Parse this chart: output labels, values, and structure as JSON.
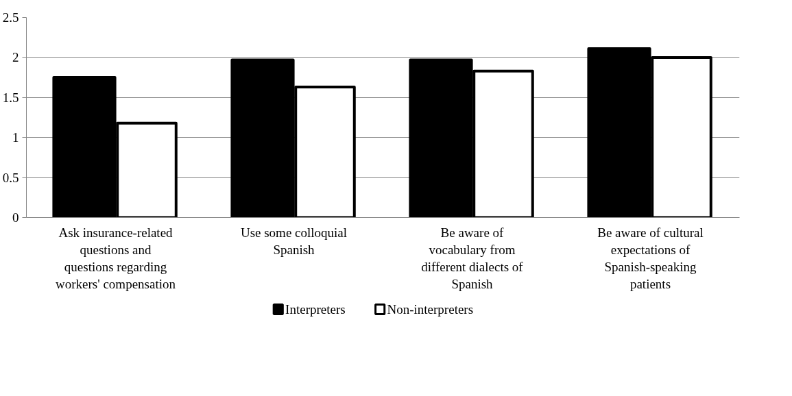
{
  "chart_data": {
    "type": "bar",
    "categories": [
      "Ask insurance-related questions and questions regarding workers' compensation",
      "Use some colloquial Spanish",
      "Be aware of vocabulary from different dialects of Spanish",
      "Be aware of cultural expectations of Spanish-speaking patients"
    ],
    "series": [
      {
        "name": "Interpreters",
        "color": "#000000",
        "values": [
          1.75,
          1.97,
          1.97,
          2.11
        ]
      },
      {
        "name": "Non-interpreters",
        "color": "#ffffff",
        "values": [
          1.18,
          1.63,
          1.83,
          2.0
        ]
      }
    ],
    "ylim": [
      0,
      2.5
    ],
    "yticks": [
      0,
      0.5,
      1,
      1.5,
      2,
      2.5
    ],
    "grid": "y",
    "legend": "bottom"
  }
}
